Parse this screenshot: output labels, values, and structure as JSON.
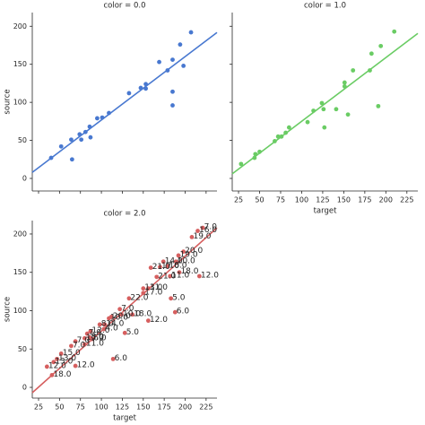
{
  "chart_data": [
    {
      "type": "scatter",
      "title": "color = 0.0",
      "ylabel": "source",
      "color": "#4878d0",
      "x": [
        40,
        52,
        64,
        65,
        74,
        76,
        81,
        87,
        86,
        95,
        101,
        109,
        133,
        147,
        153,
        153,
        169,
        179,
        185,
        185,
        185,
        194,
        198,
        207
      ],
      "y": [
        27,
        42,
        51,
        25,
        58,
        51,
        61,
        54,
        68,
        79,
        80,
        86,
        112,
        119,
        124,
        118,
        153,
        142,
        156,
        114,
        96,
        176,
        148,
        192
      ],
      "fit": {
        "x": [
          17.5,
          238
        ],
        "y": [
          8,
          191.8
        ]
      },
      "xlim": [
        17.5,
        238
      ],
      "ylim": [
        -16.5,
        218
      ],
      "xticks": [
        25,
        50,
        75,
        100,
        125,
        150,
        175,
        200,
        225
      ],
      "yticks": [
        0,
        50,
        100,
        150,
        200
      ]
    },
    {
      "type": "scatter",
      "title": "color = 1.0",
      "xlabel": "target",
      "color": "#6acc64",
      "x": [
        28,
        44,
        45,
        50,
        68,
        72,
        76,
        81,
        85,
        107,
        114,
        124,
        126,
        127,
        141,
        151,
        151,
        155,
        161,
        181,
        183,
        191,
        194,
        210
      ],
      "y": [
        19,
        27,
        32,
        35,
        49,
        55,
        55,
        60,
        67,
        74,
        89,
        99,
        91,
        67,
        91,
        126,
        121,
        84,
        142,
        142,
        164,
        95,
        174,
        193
      ],
      "fit": {
        "x": [
          17.5,
          238
        ],
        "y": [
          6,
          190.6
        ]
      },
      "xlim": [
        17.5,
        238
      ],
      "ylim": [
        -16.5,
        218
      ],
      "xticks": [
        25,
        50,
        75,
        100,
        125,
        150,
        175,
        200,
        225
      ],
      "yticks": [
        0,
        50,
        100,
        150,
        200
      ]
    },
    {
      "type": "scatter",
      "title": "color = 2.0",
      "xlabel": "target",
      "ylabel": "source",
      "color": "#d65f5f",
      "x": [
        221,
        215,
        208,
        198,
        192,
        189,
        217,
        174,
        179,
        170,
        159,
        166,
        182,
        193,
        183,
        188,
        133,
        156,
        150,
        150,
        156,
        122,
        137,
        124,
        112,
        109,
        104,
        103,
        98,
        87,
        83,
        86,
        89,
        80,
        80,
        69,
        64,
        52,
        47,
        43,
        35,
        41,
        114,
        128,
        69
      ],
      "y": [
        208,
        204,
        196,
        177,
        172,
        164,
        145,
        164,
        158,
        157,
        156,
        144,
        145,
        150,
        116,
        98,
        116,
        129,
        129,
        123,
        87,
        102,
        95,
        95,
        92,
        90,
        82,
        76,
        82,
        73,
        70,
        65,
        63,
        64,
        56,
        60,
        54,
        44,
        37,
        33,
        27,
        16,
        37,
        71,
        28
      ],
      "labels": [
        "7.0",
        "16.0",
        "19.0",
        "20.0",
        "19.0",
        "10.0",
        "12.0",
        "14.0",
        "16.0",
        "17.0",
        "21.0",
        "21.0",
        "11.0",
        "18.0",
        "5.0",
        "6.0",
        "22.0",
        "11.0",
        "13.0",
        "17.0",
        "12.0",
        "7.0",
        "18.0",
        "10.0",
        "20.0",
        "10.0",
        "14.0",
        "4.0",
        "8.0",
        "12.0",
        "7.0",
        "8.0",
        "6.0",
        "15.0",
        "11.0",
        "7.0",
        "7.0",
        "15.0",
        "13.0",
        "13.0",
        "12.0",
        "18.0",
        "6.0",
        "5.0",
        "12.0"
      ],
      "fit": {
        "x": [
          17.5,
          238
        ],
        "y": [
          -7,
          208
        ]
      },
      "xlim": [
        17.5,
        238
      ],
      "ylim": [
        -14,
        217.5
      ],
      "xticks": [
        25,
        50,
        75,
        100,
        125,
        150,
        175,
        200,
        225
      ],
      "yticks": [
        0,
        50,
        100,
        150,
        200
      ]
    }
  ]
}
